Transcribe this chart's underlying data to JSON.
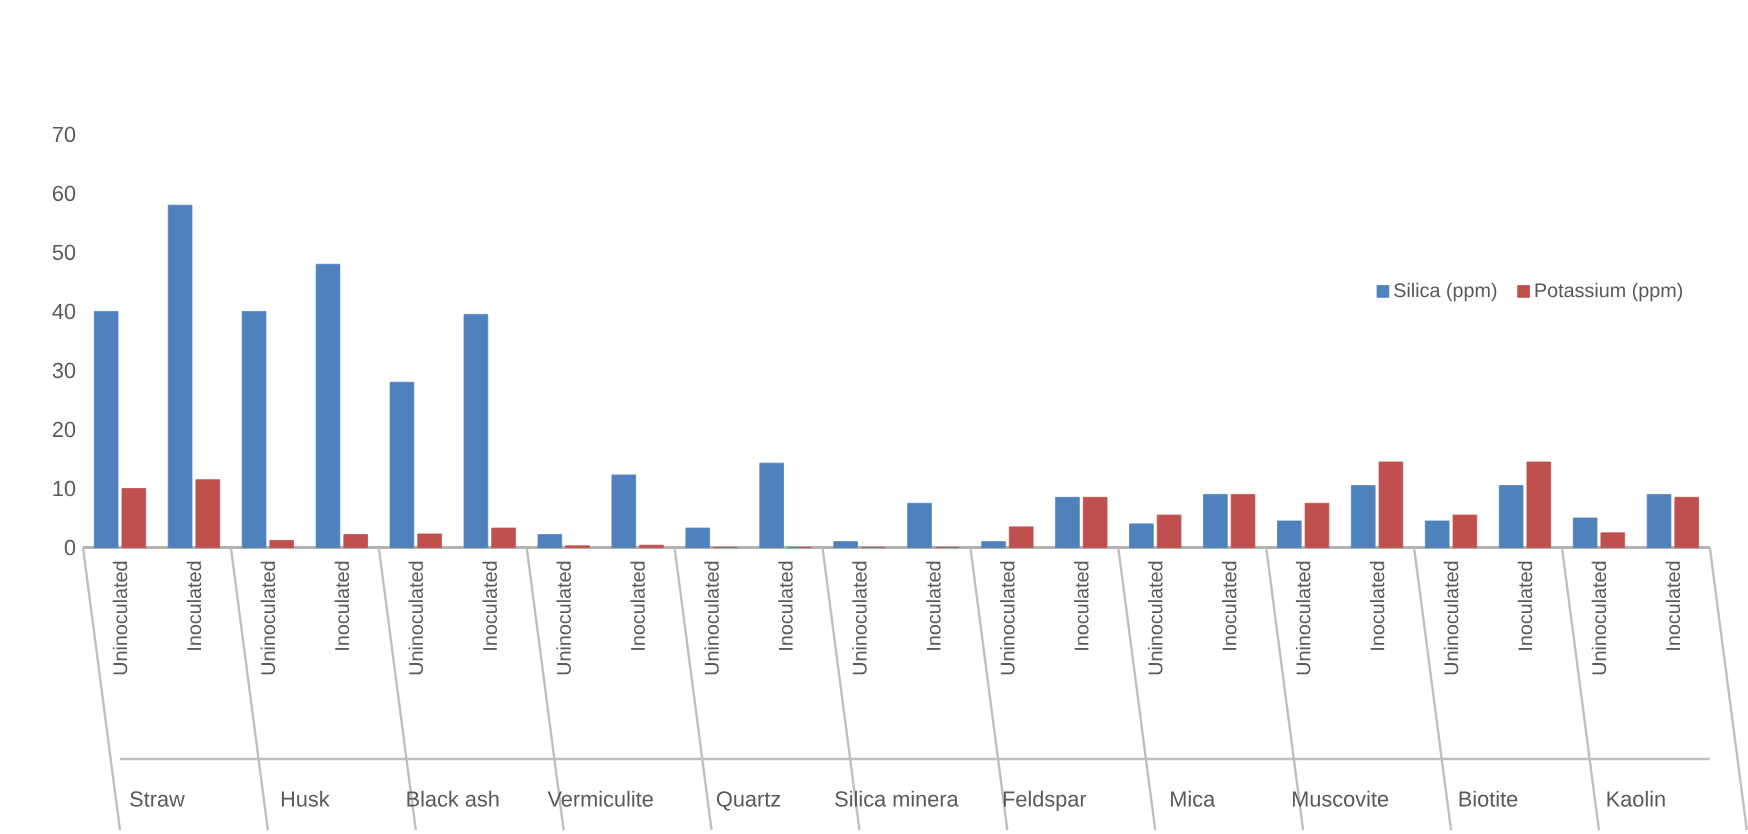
{
  "chart_data": {
    "type": "bar",
    "categories": [
      "Uninoculated",
      "Inoculated",
      "Uninoculated",
      "Inoculated",
      "Uninoculated",
      "Inoculated",
      "Uninoculated",
      "Inoculated",
      "Uninoculated",
      "Inoculated",
      "Uninoculated",
      "Inoculated",
      "Uninoculated",
      "Inoculated",
      "Uninoculated",
      "Inoculated",
      "Uninoculated",
      "Inoculated",
      "Uninoculated",
      "Inoculated",
      "Uninoculated",
      "Inoculated"
    ],
    "series": [
      {
        "name": "Silica (ppm)",
        "color": "#4f81bd",
        "values": [
          40,
          58,
          40,
          48,
          28,
          39.5,
          2.2,
          12.3,
          3.3,
          14.3,
          1,
          7.5,
          1,
          8.5,
          4,
          9,
          4.5,
          10.5,
          4.5,
          10.5,
          5,
          9
        ]
      },
      {
        "name": "Potassium (ppm)",
        "color": "#c0504d",
        "values": [
          10,
          11.5,
          1.2,
          2.2,
          2.3,
          3.3,
          0.3,
          0.4,
          0,
          0,
          0,
          0,
          3.5,
          8.5,
          5.5,
          9,
          7.5,
          14.5,
          5.5,
          14.5,
          2.5,
          8.5
        ]
      }
    ],
    "annotations": [
      "Straw",
      "Husk",
      "Black ash",
      "Vermiculite",
      "Quartz",
      "Silica minera",
      "Feldspar",
      "Mica",
      "Muscovite",
      "Biotite",
      "Kaolin"
    ],
    "ylim": [
      0,
      70
    ],
    "yticks": [
      0,
      10,
      20,
      30,
      40,
      50,
      60,
      70
    ],
    "legend": "right"
  }
}
